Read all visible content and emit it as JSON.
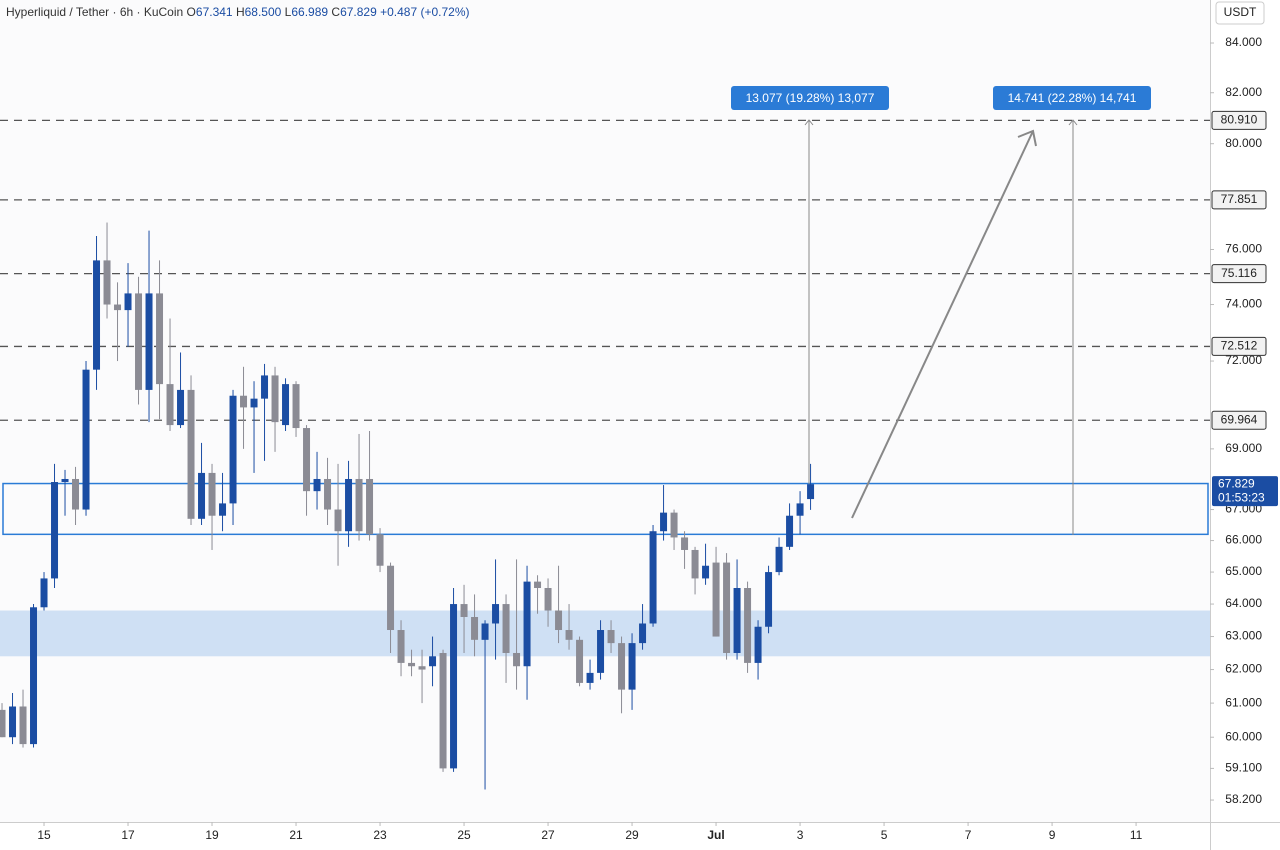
{
  "chart_data": {
    "type": "candlestick",
    "header": {
      "symbol": "Hyperliquid / Tether · 6h · KuCoin",
      "ohlc": [
        {
          "key": "O",
          "value": "67.341"
        },
        {
          "key": "H",
          "value": "68.500"
        },
        {
          "key": "L",
          "value": "66.989"
        },
        {
          "key": "C",
          "value": "67.829"
        }
      ],
      "change": "+0.487 (+0.72%)"
    },
    "currency": "USDT",
    "x": [
      14,
      14.25,
      14.5,
      14.75,
      15,
      15.25,
      15.5,
      15.75,
      16,
      16.25,
      16.5,
      16.75,
      17,
      17.25,
      17.5,
      17.75,
      18,
      18.25,
      18.5,
      18.75,
      19,
      19.25,
      19.5,
      19.75,
      20,
      20.25,
      20.5,
      20.75,
      21,
      21.25,
      21.5,
      21.75,
      22,
      22.25,
      22.5,
      22.75,
      23,
      23.25,
      23.5,
      23.75,
      24,
      24.25,
      24.5,
      24.75,
      25,
      25.25,
      25.5,
      25.75,
      26,
      26.25,
      26.5,
      26.75,
      27,
      27.25,
      27.5,
      27.75,
      28,
      28.25,
      28.5,
      28.75,
      29,
      29.25,
      29.5,
      29.75,
      30,
      30.25,
      30.5,
      30.75,
      31,
      31.25,
      31.5,
      31.75,
      32,
      32.25,
      32.5,
      32.75,
      33,
      33.25
    ],
    "open": [
      60.8,
      60.0,
      60.9,
      59.8,
      63.9,
      64.8,
      67.9,
      68.0,
      67.0,
      71.7,
      75.6,
      74.0,
      73.8,
      74.4,
      71.0,
      74.4,
      71.2,
      69.8,
      71.0,
      66.7,
      68.2,
      66.8,
      67.2,
      70.8,
      70.4,
      70.7,
      71.5,
      69.8,
      71.2,
      69.7,
      67.6,
      68.0,
      67.0,
      66.3,
      68.0,
      68.0,
      66.2,
      65.2,
      63.2,
      62.2,
      62.1,
      62.1,
      62.5,
      59.1,
      64.0,
      63.6,
      62.9,
      63.4,
      64.0,
      62.5,
      62.1,
      64.7,
      64.5,
      63.8,
      63.2,
      62.9,
      61.6,
      61.9,
      63.2,
      62.8,
      61.4,
      62.8,
      63.4,
      66.3,
      66.9,
      66.1,
      65.7,
      64.8,
      65.3,
      65.3,
      62.5,
      64.5,
      62.2,
      63.3,
      65.0,
      65.8,
      66.8,
      67.341
    ],
    "high": [
      61.0,
      61.3,
      61.4,
      64.0,
      65.0,
      68.5,
      68.3,
      68.4,
      72.0,
      76.5,
      77.0,
      74.8,
      75.5,
      75.0,
      76.7,
      75.6,
      73.5,
      72.3,
      71.5,
      69.2,
      68.5,
      68.2,
      71.0,
      71.8,
      71.3,
      71.9,
      71.8,
      71.4,
      71.3,
      69.8,
      68.9,
      68.7,
      68.5,
      68.6,
      69.5,
      69.6,
      66.4,
      65.3,
      63.5,
      62.6,
      62.6,
      63.0,
      62.6,
      64.5,
      64.6,
      64.3,
      63.5,
      65.4,
      64.3,
      65.4,
      65.2,
      64.9,
      64.8,
      65.2,
      64.0,
      63.0,
      62.3,
      63.5,
      63.5,
      63.0,
      63.1,
      64.0,
      66.5,
      67.8,
      67.0,
      66.3,
      65.8,
      65.9,
      65.8,
      65.6,
      65.4,
      64.7,
      63.5,
      65.2,
      66.1,
      67.2,
      67.6,
      68.5
    ],
    "low": [
      60.0,
      59.8,
      59.7,
      59.7,
      63.8,
      64.5,
      66.8,
      66.5,
      66.8,
      71.0,
      73.5,
      72.0,
      72.5,
      70.5,
      69.9,
      70.0,
      69.6,
      69.7,
      66.5,
      66.5,
      65.7,
      66.3,
      66.5,
      69.0,
      68.2,
      68.6,
      68.9,
      69.6,
      69.4,
      66.8,
      67.0,
      66.5,
      65.2,
      65.8,
      66.0,
      66.0,
      65.0,
      62.5,
      61.8,
      61.8,
      61.0,
      61.5,
      59.0,
      59.0,
      62.5,
      62.4,
      58.5,
      62.3,
      61.6,
      61.4,
      61.1,
      63.7,
      63.3,
      62.8,
      62.6,
      61.5,
      61.4,
      61.7,
      62.5,
      60.7,
      60.8,
      62.6,
      63.3,
      66.0,
      65.7,
      65.1,
      64.3,
      64.6,
      63.0,
      62.3,
      62.3,
      61.9,
      61.7,
      63.1,
      64.9,
      65.7,
      66.2,
      66.989
    ],
    "close": [
      60.0,
      60.9,
      59.8,
      63.9,
      64.8,
      67.9,
      68.0,
      67.0,
      71.7,
      75.6,
      74.0,
      73.8,
      74.4,
      71.0,
      74.4,
      71.2,
      69.8,
      71.0,
      66.7,
      68.2,
      66.8,
      67.2,
      70.8,
      70.4,
      70.7,
      71.5,
      69.9,
      71.2,
      69.7,
      67.6,
      68.0,
      67.0,
      66.3,
      68.0,
      66.3,
      66.2,
      65.2,
      63.2,
      62.2,
      62.1,
      62.0,
      62.4,
      59.1,
      64.0,
      63.6,
      62.9,
      63.4,
      64.0,
      62.5,
      62.1,
      64.7,
      64.5,
      63.8,
      63.2,
      62.9,
      61.6,
      61.9,
      63.2,
      62.8,
      61.4,
      62.8,
      63.4,
      66.3,
      66.9,
      66.1,
      65.7,
      64.8,
      65.2,
      63.0,
      62.5,
      64.5,
      62.2,
      63.3,
      65.0,
      65.8,
      66.8,
      67.2,
      67.829
    ],
    "up_color": "#1b4da3",
    "down_color": "#8b8b94",
    "log_scale": true,
    "ylim": [
      57.64,
      85.77
    ],
    "yticks": [
      {
        "value": 84,
        "label": "84.000"
      },
      {
        "value": 82,
        "label": "82.000"
      },
      {
        "value": 80,
        "label": "80.000"
      },
      {
        "value": 76,
        "label": "76.000"
      },
      {
        "value": 74,
        "label": "74.000"
      },
      {
        "value": 72,
        "label": "72.000"
      },
      {
        "value": 69,
        "label": "69.000"
      },
      {
        "value": 67,
        "label": "67.000"
      },
      {
        "value": 66,
        "label": "66.000"
      },
      {
        "value": 65,
        "label": "65.000"
      },
      {
        "value": 64,
        "label": "64.000"
      },
      {
        "value": 63,
        "label": "63.000"
      },
      {
        "value": 62,
        "label": "62.000"
      },
      {
        "value": 61,
        "label": "61.000"
      },
      {
        "value": 60,
        "label": "60.000"
      },
      {
        "value": 59.1,
        "label": "59.100"
      },
      {
        "value": 58.2,
        "label": "58.200"
      }
    ],
    "xlim": [
      13.952,
      42.76
    ],
    "xticks": [
      15,
      17,
      19,
      21,
      23,
      25,
      27,
      29,
      {
        "value": 31,
        "label": "Jul"
      },
      {
        "value": 33,
        "label": "3"
      },
      {
        "value": 35,
        "label": "5"
      },
      {
        "value": 37,
        "label": "7"
      },
      {
        "value": 39,
        "label": "9"
      },
      {
        "value": 41,
        "label": "11"
      }
    ],
    "levels": [
      {
        "value": 80.91,
        "label": "80.910"
      },
      {
        "value": 77.851,
        "label": "77.851"
      },
      {
        "value": 75.116,
        "label": "75.116"
      },
      {
        "value": 72.512,
        "label": "72.512"
      },
      {
        "value": 69.964,
        "label": "69.964"
      }
    ],
    "last_price": {
      "value": 67.829,
      "label": "67.829",
      "countdown": "01:53:23"
    },
    "zones": [
      {
        "top": 67.85,
        "bottom": 66.2,
        "style": "outline"
      },
      {
        "top": 63.8,
        "bottom": 62.4,
        "style": "fill"
      }
    ],
    "measures": [
      "13.077 (19.28%) 13,077",
      "14.741 (22.28%) 14,741"
    ]
  }
}
